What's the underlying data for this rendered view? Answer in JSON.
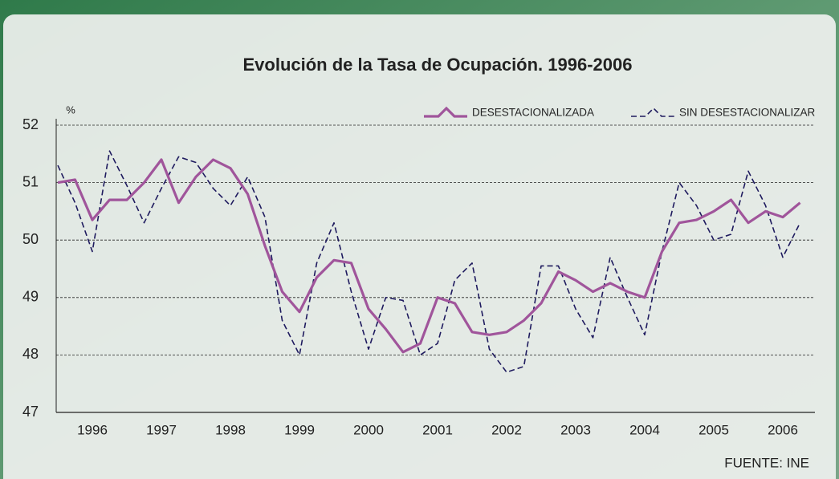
{
  "chart_data": {
    "type": "line",
    "title": "Evolución de la Tasa de Ocupación. 1996-2006",
    "y_label": "%",
    "source": "FUENTE: INE",
    "x": [
      1996,
      1996.25,
      1996.5,
      1996.75,
      1997,
      1997.25,
      1997.5,
      1997.75,
      1998,
      1998.25,
      1998.5,
      1998.75,
      1999,
      1999.25,
      1999.5,
      1999.75,
      2000,
      2000.25,
      2000.5,
      2000.75,
      2001,
      2001.25,
      2001.5,
      2001.75,
      2002,
      2002.25,
      2002.5,
      2002.75,
      2003,
      2003.25,
      2003.5,
      2003.75,
      2004,
      2004.25,
      2004.5,
      2004.75,
      2005,
      2005.25,
      2005.5,
      2005.75,
      2006,
      2006.25,
      2006.5,
      2006.75
    ],
    "xlim": [
      1996,
      2007
    ],
    "xticks": [
      {
        "value": 1996.5,
        "label": "1996"
      },
      {
        "value": 1997.5,
        "label": "1997"
      },
      {
        "value": 1998.5,
        "label": "1998"
      },
      {
        "value": 1999.5,
        "label": "1999"
      },
      {
        "value": 2000.5,
        "label": "2000"
      },
      {
        "value": 2001.5,
        "label": "2001"
      },
      {
        "value": 2002.5,
        "label": "2002"
      },
      {
        "value": 2003.5,
        "label": "2003"
      },
      {
        "value": 2004.5,
        "label": "2004"
      },
      {
        "value": 2005.5,
        "label": "2005"
      },
      {
        "value": 2006.5,
        "label": "2006"
      }
    ],
    "ylim": [
      47,
      52
    ],
    "yticks": [
      47,
      48,
      49,
      50,
      51,
      52
    ],
    "grid": true,
    "legend": "top-right",
    "series": [
      {
        "name": "DESESTACIONALIZADA",
        "color": "#a0559b",
        "line_style": "solid",
        "values": [
          51.0,
          51.05,
          50.35,
          50.7,
          50.7,
          51.0,
          51.4,
          50.65,
          51.1,
          51.4,
          51.25,
          50.8,
          49.9,
          49.1,
          48.75,
          49.35,
          49.65,
          49.6,
          48.8,
          48.45,
          48.05,
          48.2,
          49.0,
          48.9,
          48.4,
          48.35,
          48.4,
          48.6,
          48.9,
          49.45,
          49.3,
          49.1,
          49.25,
          49.1,
          49.0,
          49.8,
          50.3,
          50.35,
          50.5,
          50.7,
          50.3,
          50.5,
          50.4,
          50.65
        ]
      },
      {
        "name": "SIN DESESTACIONALIZAR",
        "color": "#1e1a5e",
        "line_style": "dashed",
        "values": [
          51.3,
          50.65,
          49.8,
          51.55,
          50.95,
          50.3,
          50.9,
          51.45,
          51.35,
          50.9,
          50.6,
          51.1,
          50.4,
          48.6,
          48.0,
          49.6,
          50.3,
          49.1,
          48.1,
          49.0,
          48.95,
          48.0,
          48.2,
          49.3,
          49.6,
          48.1,
          47.7,
          47.8,
          49.55,
          49.55,
          48.8,
          48.3,
          49.7,
          49.0,
          48.35,
          49.8,
          51.0,
          50.6,
          50.0,
          50.1,
          51.2,
          50.6,
          49.7,
          50.3
        ]
      }
    ]
  }
}
